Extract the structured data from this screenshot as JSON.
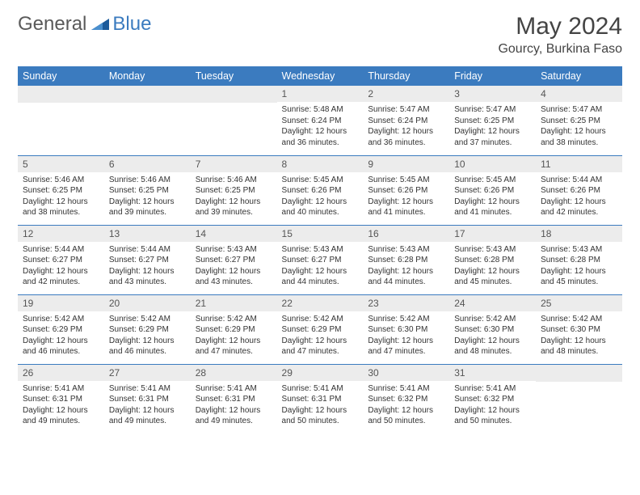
{
  "logo": {
    "general": "General",
    "blue": "Blue"
  },
  "title": "May 2024",
  "location": "Gourcy, Burkina Faso",
  "colors": {
    "header_bg": "#3b7bbf",
    "header_fg": "#ffffff",
    "daynum_bg": "#ececec",
    "border": "#3b7bbf"
  },
  "day_headers": [
    "Sunday",
    "Monday",
    "Tuesday",
    "Wednesday",
    "Thursday",
    "Friday",
    "Saturday"
  ],
  "weeks": [
    [
      {
        "n": "",
        "sunrise": "",
        "sunset": "",
        "daylight": ""
      },
      {
        "n": "",
        "sunrise": "",
        "sunset": "",
        "daylight": ""
      },
      {
        "n": "",
        "sunrise": "",
        "sunset": "",
        "daylight": ""
      },
      {
        "n": "1",
        "sunrise": "Sunrise: 5:48 AM",
        "sunset": "Sunset: 6:24 PM",
        "daylight": "Daylight: 12 hours and 36 minutes."
      },
      {
        "n": "2",
        "sunrise": "Sunrise: 5:47 AM",
        "sunset": "Sunset: 6:24 PM",
        "daylight": "Daylight: 12 hours and 36 minutes."
      },
      {
        "n": "3",
        "sunrise": "Sunrise: 5:47 AM",
        "sunset": "Sunset: 6:25 PM",
        "daylight": "Daylight: 12 hours and 37 minutes."
      },
      {
        "n": "4",
        "sunrise": "Sunrise: 5:47 AM",
        "sunset": "Sunset: 6:25 PM",
        "daylight": "Daylight: 12 hours and 38 minutes."
      }
    ],
    [
      {
        "n": "5",
        "sunrise": "Sunrise: 5:46 AM",
        "sunset": "Sunset: 6:25 PM",
        "daylight": "Daylight: 12 hours and 38 minutes."
      },
      {
        "n": "6",
        "sunrise": "Sunrise: 5:46 AM",
        "sunset": "Sunset: 6:25 PM",
        "daylight": "Daylight: 12 hours and 39 minutes."
      },
      {
        "n": "7",
        "sunrise": "Sunrise: 5:46 AM",
        "sunset": "Sunset: 6:25 PM",
        "daylight": "Daylight: 12 hours and 39 minutes."
      },
      {
        "n": "8",
        "sunrise": "Sunrise: 5:45 AM",
        "sunset": "Sunset: 6:26 PM",
        "daylight": "Daylight: 12 hours and 40 minutes."
      },
      {
        "n": "9",
        "sunrise": "Sunrise: 5:45 AM",
        "sunset": "Sunset: 6:26 PM",
        "daylight": "Daylight: 12 hours and 41 minutes."
      },
      {
        "n": "10",
        "sunrise": "Sunrise: 5:45 AM",
        "sunset": "Sunset: 6:26 PM",
        "daylight": "Daylight: 12 hours and 41 minutes."
      },
      {
        "n": "11",
        "sunrise": "Sunrise: 5:44 AM",
        "sunset": "Sunset: 6:26 PM",
        "daylight": "Daylight: 12 hours and 42 minutes."
      }
    ],
    [
      {
        "n": "12",
        "sunrise": "Sunrise: 5:44 AM",
        "sunset": "Sunset: 6:27 PM",
        "daylight": "Daylight: 12 hours and 42 minutes."
      },
      {
        "n": "13",
        "sunrise": "Sunrise: 5:44 AM",
        "sunset": "Sunset: 6:27 PM",
        "daylight": "Daylight: 12 hours and 43 minutes."
      },
      {
        "n": "14",
        "sunrise": "Sunrise: 5:43 AM",
        "sunset": "Sunset: 6:27 PM",
        "daylight": "Daylight: 12 hours and 43 minutes."
      },
      {
        "n": "15",
        "sunrise": "Sunrise: 5:43 AM",
        "sunset": "Sunset: 6:27 PM",
        "daylight": "Daylight: 12 hours and 44 minutes."
      },
      {
        "n": "16",
        "sunrise": "Sunrise: 5:43 AM",
        "sunset": "Sunset: 6:28 PM",
        "daylight": "Daylight: 12 hours and 44 minutes."
      },
      {
        "n": "17",
        "sunrise": "Sunrise: 5:43 AM",
        "sunset": "Sunset: 6:28 PM",
        "daylight": "Daylight: 12 hours and 45 minutes."
      },
      {
        "n": "18",
        "sunrise": "Sunrise: 5:43 AM",
        "sunset": "Sunset: 6:28 PM",
        "daylight": "Daylight: 12 hours and 45 minutes."
      }
    ],
    [
      {
        "n": "19",
        "sunrise": "Sunrise: 5:42 AM",
        "sunset": "Sunset: 6:29 PM",
        "daylight": "Daylight: 12 hours and 46 minutes."
      },
      {
        "n": "20",
        "sunrise": "Sunrise: 5:42 AM",
        "sunset": "Sunset: 6:29 PM",
        "daylight": "Daylight: 12 hours and 46 minutes."
      },
      {
        "n": "21",
        "sunrise": "Sunrise: 5:42 AM",
        "sunset": "Sunset: 6:29 PM",
        "daylight": "Daylight: 12 hours and 47 minutes."
      },
      {
        "n": "22",
        "sunrise": "Sunrise: 5:42 AM",
        "sunset": "Sunset: 6:29 PM",
        "daylight": "Daylight: 12 hours and 47 minutes."
      },
      {
        "n": "23",
        "sunrise": "Sunrise: 5:42 AM",
        "sunset": "Sunset: 6:30 PM",
        "daylight": "Daylight: 12 hours and 47 minutes."
      },
      {
        "n": "24",
        "sunrise": "Sunrise: 5:42 AM",
        "sunset": "Sunset: 6:30 PM",
        "daylight": "Daylight: 12 hours and 48 minutes."
      },
      {
        "n": "25",
        "sunrise": "Sunrise: 5:42 AM",
        "sunset": "Sunset: 6:30 PM",
        "daylight": "Daylight: 12 hours and 48 minutes."
      }
    ],
    [
      {
        "n": "26",
        "sunrise": "Sunrise: 5:41 AM",
        "sunset": "Sunset: 6:31 PM",
        "daylight": "Daylight: 12 hours and 49 minutes."
      },
      {
        "n": "27",
        "sunrise": "Sunrise: 5:41 AM",
        "sunset": "Sunset: 6:31 PM",
        "daylight": "Daylight: 12 hours and 49 minutes."
      },
      {
        "n": "28",
        "sunrise": "Sunrise: 5:41 AM",
        "sunset": "Sunset: 6:31 PM",
        "daylight": "Daylight: 12 hours and 49 minutes."
      },
      {
        "n": "29",
        "sunrise": "Sunrise: 5:41 AM",
        "sunset": "Sunset: 6:31 PM",
        "daylight": "Daylight: 12 hours and 50 minutes."
      },
      {
        "n": "30",
        "sunrise": "Sunrise: 5:41 AM",
        "sunset": "Sunset: 6:32 PM",
        "daylight": "Daylight: 12 hours and 50 minutes."
      },
      {
        "n": "31",
        "sunrise": "Sunrise: 5:41 AM",
        "sunset": "Sunset: 6:32 PM",
        "daylight": "Daylight: 12 hours and 50 minutes."
      },
      {
        "n": "",
        "sunrise": "",
        "sunset": "",
        "daylight": ""
      }
    ]
  ]
}
